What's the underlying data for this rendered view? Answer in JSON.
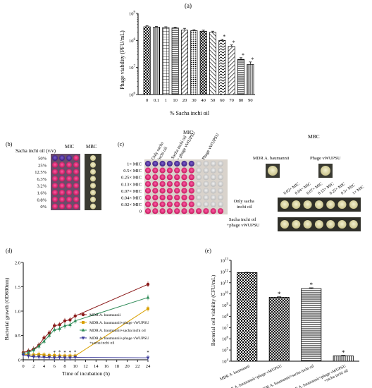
{
  "panels": {
    "a": {
      "tag": "(a)"
    },
    "b": {
      "tag": "(b)",
      "row_header": "Sacha inchi oil (v/v)",
      "col_mic": "MIC",
      "col_mbc": "MBC",
      "rows": [
        "50%",
        "25%",
        "12.5%",
        "6.3%",
        "3.2%",
        "1.6%",
        "0.8%",
        "0%"
      ]
    },
    "c": {
      "tag": "(c)",
      "mic_title": "MIC",
      "mbc_title": "MBC",
      "col_only_oil": [
        "Only sacha",
        "inchi oil"
      ],
      "col_oil_phage": [
        "Sacha inchi oil",
        "+ phage vWUPSU"
      ],
      "col_phage": "Phage vWUPSU",
      "rows": [
        "1× MIC",
        "0.5× MIC",
        "0.25× MIC",
        "0.13× MIC",
        "0.07× MIC",
        "0.04× MIC",
        "0.02× MIC",
        "0"
      ],
      "mbc_ctrl1": "MDR A. baumannii",
      "mbc_ctrl2": "Phage vWUPSU",
      "mbc_cols": [
        "0.02× MIC",
        "0.04× MIC",
        "0.07× MIC",
        "0.13× MIC",
        "0.25× MIC",
        "0.5× MIC",
        "1× MIC"
      ],
      "mbc_row1": [
        "Only sacha",
        "inchi oil"
      ],
      "mbc_row2": [
        "Sacha inchi oil",
        "+phage vWUPSU"
      ]
    },
    "d": {
      "tag": "(d)"
    },
    "e": {
      "tag": "(e)"
    }
  },
  "chart_data": [
    {
      "panel": "a",
      "type": "bar",
      "xlabel": "% Sacha inchi oil",
      "ylabel": "Phage viability (PFU/mL)",
      "yscale": "log",
      "ylim": [
        1000000,
        1000000000
      ],
      "yticks": [
        "10^6",
        "10^7",
        "10^8",
        "10^9"
      ],
      "categories": [
        "0",
        "0.1",
        "1",
        "10",
        "20",
        "30",
        "40",
        "50",
        "60",
        "70",
        "80",
        "90"
      ],
      "values": [
        320000000,
        310000000,
        300000000,
        290000000,
        240000000,
        230000000,
        220000000,
        200000000,
        100000000,
        60000000,
        20000000,
        13000000
      ],
      "errors": [
        30000000,
        20000000,
        20000000,
        20000000,
        40000000,
        20000000,
        20000000,
        20000000,
        10000000,
        8000000,
        3000000,
        3000000
      ],
      "significant": [
        false,
        false,
        false,
        false,
        false,
        false,
        false,
        false,
        true,
        true,
        true,
        true
      ],
      "annotation": "*"
    },
    {
      "panel": "d",
      "type": "line",
      "xlabel": "Time of incubation (h)",
      "ylabel": "Bacterial growth (OD600nm)",
      "xlim": [
        0,
        24
      ],
      "ylim": [
        0,
        2.0
      ],
      "xticks": [
        "0",
        "2",
        "4",
        "6",
        "8",
        "10",
        "12",
        "14",
        "16",
        "18",
        "20",
        "22",
        "24"
      ],
      "yticks": [
        "0",
        "0.5",
        "1.0",
        "1.5",
        "2.0"
      ],
      "x": [
        0,
        1,
        2,
        3,
        4,
        5,
        6,
        7,
        8,
        9,
        10,
        24
      ],
      "series": [
        {
          "name": "MDR A. baumannii",
          "color": "#8b1a1a",
          "marker": "circle",
          "values": [
            0.15,
            0.18,
            0.22,
            0.3,
            0.45,
            0.55,
            0.7,
            0.72,
            0.8,
            0.82,
            0.9,
            1.55
          ]
        },
        {
          "name": "MDR A. baumannii+phage vWUPSU",
          "color": "#d9a000",
          "marker": "square",
          "values": [
            0.12,
            0.1,
            0.1,
            0.11,
            0.1,
            0.09,
            0.09,
            0.08,
            0.08,
            0.08,
            0.08,
            1.05
          ]
        },
        {
          "name": "MDR A. baumannii+sacha inchi oil",
          "color": "#2e8b57",
          "marker": "triangle",
          "values": [
            0.13,
            0.15,
            0.2,
            0.28,
            0.38,
            0.5,
            0.62,
            0.64,
            0.7,
            0.72,
            0.8,
            1.28
          ]
        },
        {
          "name": "MDR A. baumannii+phage vWUPSU +sacha inchi oil",
          "color": "#3a3a9a",
          "marker": "triangle-down",
          "values": [
            0.1,
            0.08,
            0.06,
            0.06,
            0.05,
            0.05,
            0.04,
            0.05,
            0.04,
            0.04,
            0.05,
            0.04
          ]
        }
      ],
      "annotation": "*"
    },
    {
      "panel": "e",
      "type": "bar",
      "ylabel": "Bacterial cell viability (CFU/mL)",
      "yscale": "log",
      "ylim": [
        10000,
        10000000000000
      ],
      "yticks": [
        "10^4",
        "10^5",
        "10^6",
        "10^7",
        "10^8",
        "10^9",
        "10^10",
        "10^11",
        "10^12",
        "10^13"
      ],
      "categories": [
        "MDR A. baumannii",
        "MDR A. baumannii+phage vWUPSU",
        "MDR A. baumannii+sacha inchi oil",
        "MDR A. baumannii+phage vWUPSU +sacha inchi oil"
      ],
      "values": [
        800000000000,
        5000000000,
        30000000000,
        30000
      ],
      "errors": [
        50000000000,
        500000000,
        5000000000,
        3000
      ],
      "significant": [
        false,
        true,
        true,
        true
      ],
      "annotation": "*"
    }
  ]
}
